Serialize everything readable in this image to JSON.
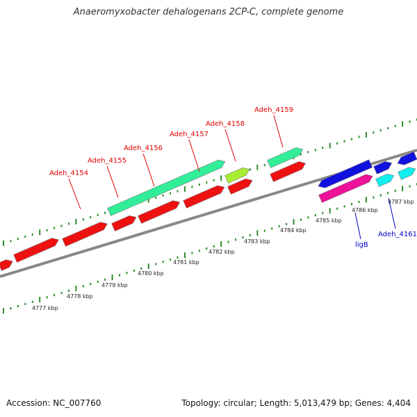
{
  "title": "Anaeromyxobacter dehalogenans 2CP-C, complete genome",
  "footer": {
    "accession": "Accession: NC_007760",
    "summary": "Topology: circular; Length: 5,013,479 bp; Genes: 4,404"
  },
  "scale_ticks": [
    "4777 kbp",
    "4778 kbp",
    "4779 kbp",
    "4780 kbp",
    "4781 kbp",
    "4782 kbp",
    "4783 kbp",
    "4784 kbp",
    "4785 kbp",
    "4786 kbp",
    "4787 kbp"
  ],
  "gene_labels": [
    {
      "text": "Adeh_4154",
      "color": "#e00000"
    },
    {
      "text": "Adeh_4155",
      "color": "#e00000"
    },
    {
      "text": "Adeh_4156",
      "color": "#e00000"
    },
    {
      "text": "Adeh_4157",
      "color": "#e00000"
    },
    {
      "text": "Adeh_4158",
      "color": "#e00000"
    },
    {
      "text": "Adeh_4159",
      "color": "#e00000"
    },
    {
      "text": "ligB",
      "color": "#0000c0"
    },
    {
      "text": "Adeh_4161",
      "color": "#0000c0"
    }
  ],
  "colors": {
    "backbone": "#888888",
    "tick_green": "#2e8b2e",
    "gene_red": "#ee1111",
    "gene_teal": "#33ee99",
    "gene_yellowgreen": "#aaee33",
    "gene_blue": "#1111dd",
    "gene_magenta": "#ee1199",
    "gene_cyan": "#11eeee",
    "label_red": "#e00000",
    "label_blue": "#0000c0"
  }
}
